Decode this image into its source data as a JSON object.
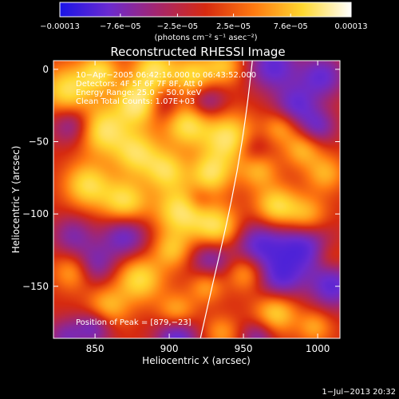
{
  "chart_data": {
    "type": "heatmap",
    "title": "Reconstructed RHESSI Image",
    "xlabel": "Heliocentric X (arcsec)",
    "ylabel": "Heliocentric Y (arcsec)",
    "xlim": [
      822,
      1015
    ],
    "ylim": [
      -186,
      6
    ],
    "x_ticks": [
      850,
      900,
      950,
      1000
    ],
    "y_ticks": [
      0,
      -50,
      -100,
      -150
    ],
    "x_tick_labels": [
      "850",
      "900",
      "950",
      "1000"
    ],
    "y_tick_labels": [
      "0",
      "−50",
      "−100",
      "−150"
    ],
    "colorbar": {
      "tick_labels": [
        "−0.00013",
        "−7.6e−05",
        "−2.5e−05",
        "2.5e−05",
        "7.6e−05",
        "0.00013"
      ],
      "tick_values": [
        -0.00013,
        -7.6e-05,
        -2.5e-05,
        2.5e-05,
        7.6e-05,
        0.00013
      ],
      "range": [
        -0.00013,
        0.00013
      ],
      "unit_label": "(photons cm⁻² s⁻¹ asec⁻²)",
      "colors": [
        "#1a14e6",
        "#6a2ad0",
        "#a4266e",
        "#d62a10",
        "#ff7a10",
        "#ffd830",
        "#ffffff"
      ]
    },
    "annotations": [
      "10−Apr−2005 06:42:16.000 to 06:43:52.000",
      "Detectors: 4F 5F 6F 7F 8F, Att 0",
      "Energy Range: 25.0 − 50.0 keV",
      "Clean    Total Counts: 1.07E+03"
    ],
    "peak_label": "Position of Peak = [879,−23]",
    "peak": [
      879,
      -23
    ],
    "limb_curve": [
      [
        956,
        6
      ],
      [
        952,
        -30
      ],
      [
        946,
        -70
      ],
      [
        938,
        -110
      ],
      [
        930,
        -145
      ],
      [
        921,
        -186
      ]
    ],
    "blobs": [
      {
        "x": 880,
        "y": -23,
        "v": 1.0,
        "s": 11
      },
      {
        "x": 832,
        "y": -15,
        "v": 0.8,
        "s": 12
      },
      {
        "x": 853,
        "y": -2,
        "v": 0.7,
        "s": 9
      },
      {
        "x": 890,
        "y": 0,
        "v": 0.75,
        "s": 10
      },
      {
        "x": 916,
        "y": -5,
        "v": 0.7,
        "s": 10
      },
      {
        "x": 937,
        "y": 2,
        "v": 0.55,
        "s": 9
      },
      {
        "x": 855,
        "y": -42,
        "v": 0.85,
        "s": 12
      },
      {
        "x": 878,
        "y": -58,
        "v": 0.75,
        "s": 11
      },
      {
        "x": 912,
        "y": -38,
        "v": 0.8,
        "s": 11
      },
      {
        "x": 940,
        "y": -48,
        "v": 0.85,
        "s": 12
      },
      {
        "x": 898,
        "y": -70,
        "v": 0.7,
        "s": 10
      },
      {
        "x": 928,
        "y": -72,
        "v": 0.75,
        "s": 10
      },
      {
        "x": 960,
        "y": -70,
        "v": 0.5,
        "s": 9
      },
      {
        "x": 845,
        "y": -80,
        "v": 0.75,
        "s": 11
      },
      {
        "x": 870,
        "y": -92,
        "v": 0.8,
        "s": 11
      },
      {
        "x": 908,
        "y": -98,
        "v": 0.85,
        "s": 12
      },
      {
        "x": 932,
        "y": -110,
        "v": 0.8,
        "s": 11
      },
      {
        "x": 972,
        "y": -95,
        "v": 0.75,
        "s": 10
      },
      {
        "x": 992,
        "y": -102,
        "v": 0.65,
        "s": 10
      },
      {
        "x": 990,
        "y": -55,
        "v": 0.55,
        "s": 9
      },
      {
        "x": 1005,
        "y": -72,
        "v": 0.5,
        "s": 9
      },
      {
        "x": 975,
        "y": -40,
        "v": 0.45,
        "s": 8
      },
      {
        "x": 952,
        "y": -140,
        "v": 0.55,
        "s": 9
      },
      {
        "x": 972,
        "y": -168,
        "v": 0.7,
        "s": 10
      },
      {
        "x": 998,
        "y": -178,
        "v": 0.45,
        "s": 8
      },
      {
        "x": 880,
        "y": -145,
        "v": 0.75,
        "s": 11
      },
      {
        "x": 858,
        "y": -165,
        "v": 0.6,
        "s": 10
      },
      {
        "x": 905,
        "y": -168,
        "v": 0.55,
        "s": 9
      },
      {
        "x": 835,
        "y": -140,
        "v": 0.5,
        "s": 9
      },
      {
        "x": 902,
        "y": -125,
        "v": 0.55,
        "s": 9
      },
      {
        "x": 925,
        "y": -150,
        "v": 0.45,
        "s": 8
      },
      {
        "x": 935,
        "y": -182,
        "v": 0.4,
        "s": 8
      },
      {
        "x": 1008,
        "y": -130,
        "v": 0.3,
        "s": 8
      },
      {
        "x": 835,
        "y": -38,
        "v": -0.6,
        "s": 10
      },
      {
        "x": 895,
        "y": -25,
        "v": -0.5,
        "s": 9
      },
      {
        "x": 925,
        "y": -22,
        "v": -0.55,
        "s": 9
      },
      {
        "x": 970,
        "y": 2,
        "v": -0.75,
        "s": 12
      },
      {
        "x": 1003,
        "y": -5,
        "v": -0.7,
        "s": 11
      },
      {
        "x": 985,
        "y": -25,
        "v": -0.65,
        "s": 10
      },
      {
        "x": 1000,
        "y": -40,
        "v": -0.6,
        "s": 9
      },
      {
        "x": 870,
        "y": -115,
        "v": -0.7,
        "s": 11
      },
      {
        "x": 835,
        "y": -115,
        "v": -0.5,
        "s": 10
      },
      {
        "x": 850,
        "y": -135,
        "v": -0.55,
        "s": 10
      },
      {
        "x": 928,
        "y": -130,
        "v": -0.6,
        "s": 10
      },
      {
        "x": 960,
        "y": -122,
        "v": -0.75,
        "s": 12
      },
      {
        "x": 990,
        "y": -122,
        "v": -0.85,
        "s": 13
      },
      {
        "x": 1010,
        "y": -150,
        "v": -0.75,
        "s": 11
      },
      {
        "x": 975,
        "y": -145,
        "v": -0.7,
        "s": 11
      },
      {
        "x": 905,
        "y": -185,
        "v": -0.8,
        "s": 10
      },
      {
        "x": 830,
        "y": -185,
        "v": -0.5,
        "s": 9
      },
      {
        "x": 850,
        "y": -178,
        "v": -0.65,
        "s": 9
      },
      {
        "x": 960,
        "y": -185,
        "v": -0.5,
        "s": 8
      },
      {
        "x": 920,
        "y": -90,
        "v": -0.3,
        "s": 7
      },
      {
        "x": 956,
        "y": -55,
        "v": -0.35,
        "s": 8
      }
    ]
  },
  "footer": {
    "date": "1−Jul−2013 20:32"
  }
}
